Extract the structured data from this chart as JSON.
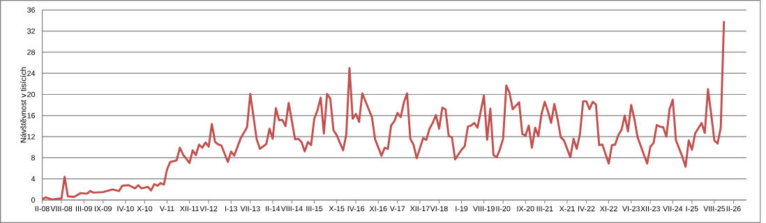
{
  "chart_data": {
    "type": "line",
    "ylabel": "Návštěvnost v tisících",
    "xlim": [
      "2008-02",
      "2026-06"
    ],
    "ylim": [
      0,
      36
    ],
    "yticks": [
      0,
      4,
      8,
      12,
      16,
      20,
      24,
      28,
      32,
      36
    ],
    "xticks": [
      {
        "value": "2008-02",
        "label": "II-08"
      },
      {
        "value": "2008-08",
        "label": "VIII-08"
      },
      {
        "value": "2009-03",
        "label": "III-09"
      },
      {
        "value": "2009-09",
        "label": "IX-09"
      },
      {
        "value": "2010-04",
        "label": "IV-10"
      },
      {
        "value": "2010-10",
        "label": "X-10"
      },
      {
        "value": "2011-05",
        "label": "V-11"
      },
      {
        "value": "2011-12",
        "label": "XII-11"
      },
      {
        "value": "2012-06",
        "label": "VI-12"
      },
      {
        "value": "2013-01",
        "label": "I-13"
      },
      {
        "value": "2013-07",
        "label": "VII-13"
      },
      {
        "value": "2014-02",
        "label": "II-14"
      },
      {
        "value": "2014-08",
        "label": "VIII-14"
      },
      {
        "value": "2015-03",
        "label": "III-15"
      },
      {
        "value": "2015-10",
        "label": "X-15"
      },
      {
        "value": "2016-04",
        "label": "IV-16"
      },
      {
        "value": "2016-11",
        "label": "XI-16"
      },
      {
        "value": "2017-05",
        "label": "V-17"
      },
      {
        "value": "2017-12",
        "label": "XII-17"
      },
      {
        "value": "2018-06",
        "label": "VI-18"
      },
      {
        "value": "2019-01",
        "label": "I-19"
      },
      {
        "value": "2019-08",
        "label": "VIII-19"
      },
      {
        "value": "2020-02",
        "label": "II-20"
      },
      {
        "value": "2020-09",
        "label": "IX-20"
      },
      {
        "value": "2021-03",
        "label": "III-21"
      },
      {
        "value": "2021-10",
        "label": "X-21"
      },
      {
        "value": "2022-04",
        "label": "IV-22"
      },
      {
        "value": "2022-11",
        "label": "XI-22"
      },
      {
        "value": "2023-06",
        "label": "VI-23"
      },
      {
        "value": "2023-12",
        "label": "XII-23"
      },
      {
        "value": "2024-07",
        "label": "VII-24"
      },
      {
        "value": "2025-01",
        "label": "I-25"
      },
      {
        "value": "2025-08",
        "label": "VIII-25"
      },
      {
        "value": "2026-02",
        "label": "II-26"
      }
    ],
    "grid": "y",
    "marker": "none",
    "line_style": "solid",
    "series": [
      {
        "color": "#c0504d",
        "x": [
          "2008-02",
          "2008-03",
          "2008-05",
          "2008-08",
          "2008-09",
          "2008-10",
          "2008-12",
          "2009-02",
          "2009-04",
          "2009-05",
          "2009-06",
          "2009-09",
          "2009-12",
          "2010-02",
          "2010-03",
          "2010-05",
          "2010-07",
          "2010-08",
          "2010-09",
          "2010-11",
          "2010-12",
          "2011-01",
          "2011-02",
          "2011-03",
          "2011-04",
          "2011-05",
          "2011-06",
          "2011-08",
          "2011-09",
          "2011-10",
          "2011-12",
          "2012-01",
          "2012-02",
          "2012-03",
          "2012-04",
          "2012-05",
          "2012-06",
          "2012-07",
          "2012-08",
          "2012-09",
          "2012-10",
          "2012-12",
          "2013-01",
          "2013-02",
          "2013-04",
          "2013-06",
          "2013-07",
          "2013-09",
          "2013-10",
          "2013-12",
          "2014-01",
          "2014-02",
          "2014-03",
          "2014-04",
          "2014-05",
          "2014-06",
          "2014-07",
          "2014-09",
          "2014-10",
          "2014-11",
          "2014-12",
          "2015-01",
          "2015-02",
          "2015-03",
          "2015-04",
          "2015-05",
          "2015-06",
          "2015-07",
          "2015-08",
          "2015-09",
          "2015-10",
          "2015-12",
          "2016-01",
          "2016-02",
          "2016-03",
          "2016-04",
          "2016-05",
          "2016-06",
          "2016-08",
          "2016-09",
          "2016-10",
          "2016-12",
          "2017-01",
          "2017-02",
          "2017-03",
          "2017-04",
          "2017-05",
          "2017-06",
          "2017-07",
          "2017-08",
          "2017-09",
          "2017-10",
          "2017-11",
          "2018-01",
          "2018-02",
          "2018-03",
          "2018-04",
          "2018-05",
          "2018-06",
          "2018-07",
          "2018-08",
          "2018-09",
          "2018-10",
          "2018-11",
          "2019-01",
          "2019-02",
          "2019-03",
          "2019-04",
          "2019-05",
          "2019-06",
          "2019-07",
          "2019-08",
          "2019-09",
          "2019-10",
          "2019-11",
          "2019-12",
          "2020-01",
          "2020-02",
          "2020-03",
          "2020-04",
          "2020-05",
          "2020-07",
          "2020-08",
          "2020-09",
          "2020-10",
          "2020-11",
          "2020-12",
          "2021-01",
          "2021-02",
          "2021-03",
          "2021-04",
          "2021-05",
          "2021-06",
          "2021-07",
          "2021-08",
          "2021-09",
          "2021-11",
          "2021-12",
          "2022-01",
          "2022-02",
          "2022-03",
          "2022-04",
          "2022-05",
          "2022-06",
          "2022-07",
          "2022-08",
          "2022-09",
          "2022-11",
          "2022-12",
          "2023-01",
          "2023-02",
          "2023-03",
          "2023-04",
          "2023-05",
          "2023-06",
          "2023-07",
          "2023-08",
          "2023-11",
          "2023-12",
          "2024-01",
          "2024-02",
          "2024-03",
          "2024-04",
          "2024-05",
          "2024-06",
          "2024-07",
          "2024-08",
          "2024-10",
          "2024-11",
          "2024-12",
          "2025-01",
          "2025-02",
          "2025-04",
          "2025-05",
          "2025-06",
          "2025-07",
          "2025-08",
          "2025-09",
          "2025-10",
          "2025-11"
        ],
        "values": [
          0.1,
          0.5,
          0.1,
          0.3,
          4.4,
          0.7,
          0.6,
          1.3,
          1.2,
          1.7,
          1.4,
          1.5,
          2.0,
          1.7,
          2.7,
          2.8,
          2.2,
          2.8,
          2.2,
          2.5,
          1.8,
          3.0,
          2.7,
          3.2,
          2.9,
          5.8,
          7.2,
          7.5,
          9.9,
          8.6,
          7.0,
          9.4,
          8.5,
          10.5,
          9.9,
          10.9,
          10.1,
          14.4,
          11.0,
          10.5,
          10.3,
          7.2,
          9.2,
          8.4,
          11.7,
          13.8,
          20.1,
          11.5,
          9.7,
          10.6,
          13.5,
          11.6,
          17.4,
          15.1,
          15.2,
          14.0,
          18.4,
          11.5,
          11.6,
          11.0,
          9.2,
          11.0,
          10.4,
          15.4,
          17.0,
          19.4,
          12.6,
          20.1,
          19.2,
          13.2,
          12.3,
          9.4,
          12.4,
          25.0,
          15.4,
          16.3,
          14.8,
          20.2,
          17.2,
          15.7,
          11.5,
          8.4,
          9.9,
          9.7,
          14.1,
          14.9,
          16.5,
          15.7,
          18.5,
          20.2,
          11.6,
          10.5,
          7.9,
          11.7,
          11.4,
          13.5,
          14.6,
          16.1,
          13.5,
          17.5,
          17.2,
          12.1,
          11.9,
          7.7,
          9.5,
          10.2,
          13.9,
          14.1,
          14.6,
          13.7,
          16.8,
          19.8,
          11.4,
          17.3,
          8.5,
          8.1,
          9.6,
          11.6,
          21.7,
          20.3,
          17.2,
          18.5,
          12.5,
          12.2,
          14.1,
          9.9,
          13.7,
          12.1,
          16.3,
          18.6,
          16.8,
          14.6,
          18.2,
          15.4,
          11.9,
          11.3,
          8.1,
          11.6,
          9.7,
          12.5,
          18.7,
          18.7,
          17.2,
          18.6,
          18.1,
          10.4,
          10.5,
          6.9,
          10.4,
          10.5,
          12.3,
          13.3,
          16.0,
          13.0,
          18.0,
          15.4,
          11.9,
          6.9,
          10.1,
          10.8,
          14.2,
          13.9,
          13.8,
          12.0,
          17.2,
          19.0,
          11.3,
          8.2,
          6.3,
          11.3,
          9.5,
          12.6,
          14.6,
          12.7,
          21.0,
          16.3,
          11.3,
          10.7,
          13.7,
          33.9
        ]
      }
    ]
  }
}
